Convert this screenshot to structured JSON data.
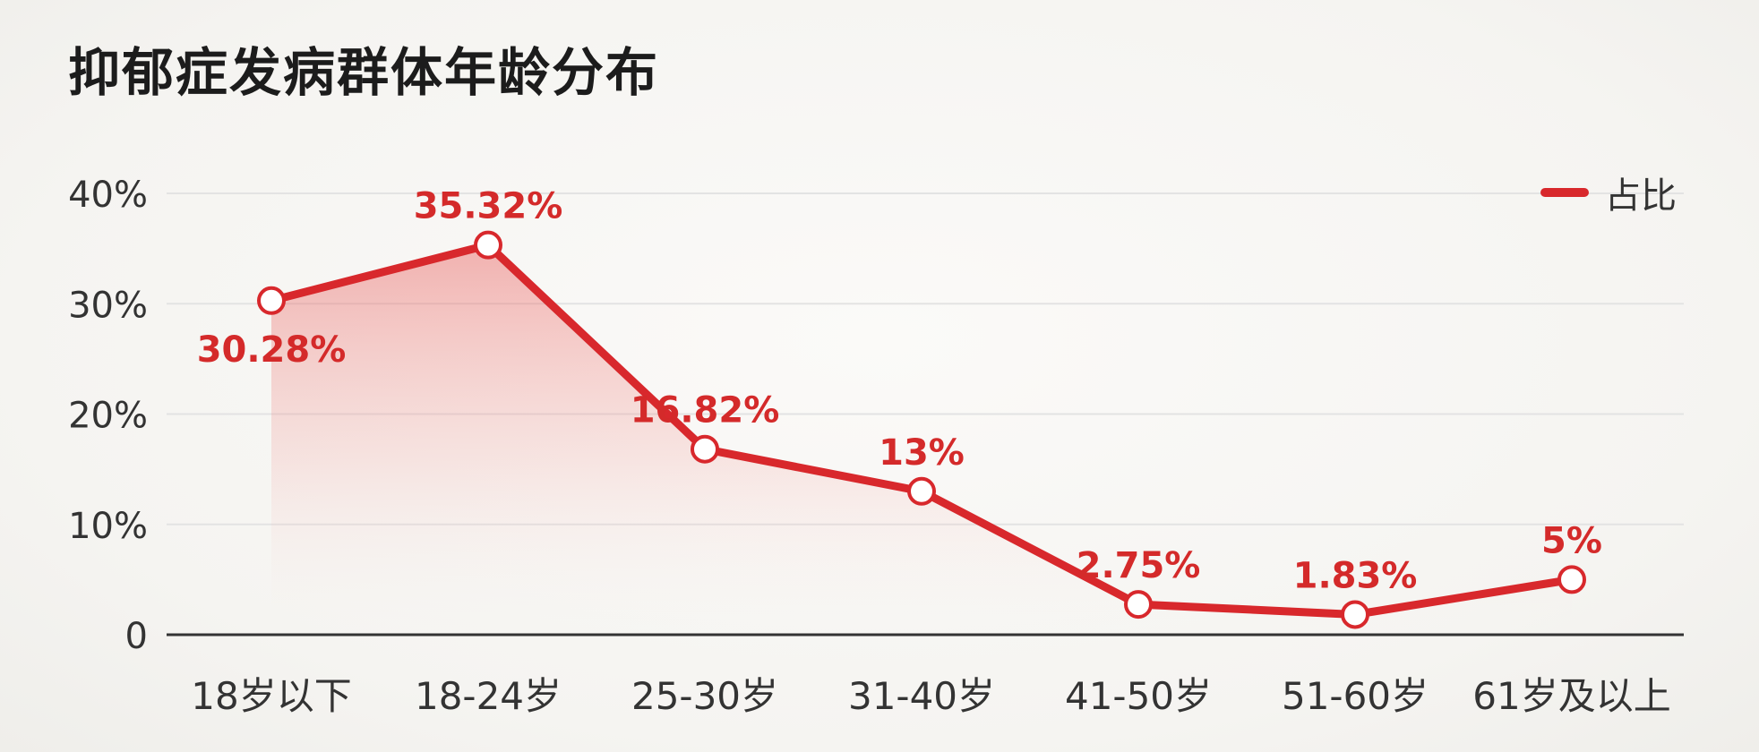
{
  "chart_data": {
    "type": "line",
    "title": "抑郁症发病群体年龄分布",
    "xlabel": "",
    "ylabel": "",
    "categories": [
      "18岁以下",
      "18-24岁",
      "25-30岁",
      "31-40岁",
      "41-50岁",
      "51-60岁",
      "61岁及以上"
    ],
    "series": [
      {
        "name": "占比",
        "values": [
          30.28,
          35.32,
          16.82,
          13,
          2.75,
          1.83,
          5
        ],
        "data_labels": [
          "30.28%",
          "35.32%",
          "16.82%",
          "13%",
          "2.75%",
          "1.83%",
          "5%"
        ]
      }
    ],
    "y_ticks": [
      "0",
      "10%",
      "20%",
      "30%",
      "40%"
    ],
    "y_tick_values": [
      0,
      10,
      20,
      30,
      40
    ],
    "ylim": [
      0,
      40
    ],
    "grid": true,
    "legend_position": "top-right",
    "area_fill": true,
    "colors": {
      "line": "#d8282c",
      "label": "#d42a2a",
      "grid": "#e3e3e3",
      "axis": "#333333",
      "tick_text": "#333333"
    }
  },
  "legend": {
    "label": "占比"
  }
}
